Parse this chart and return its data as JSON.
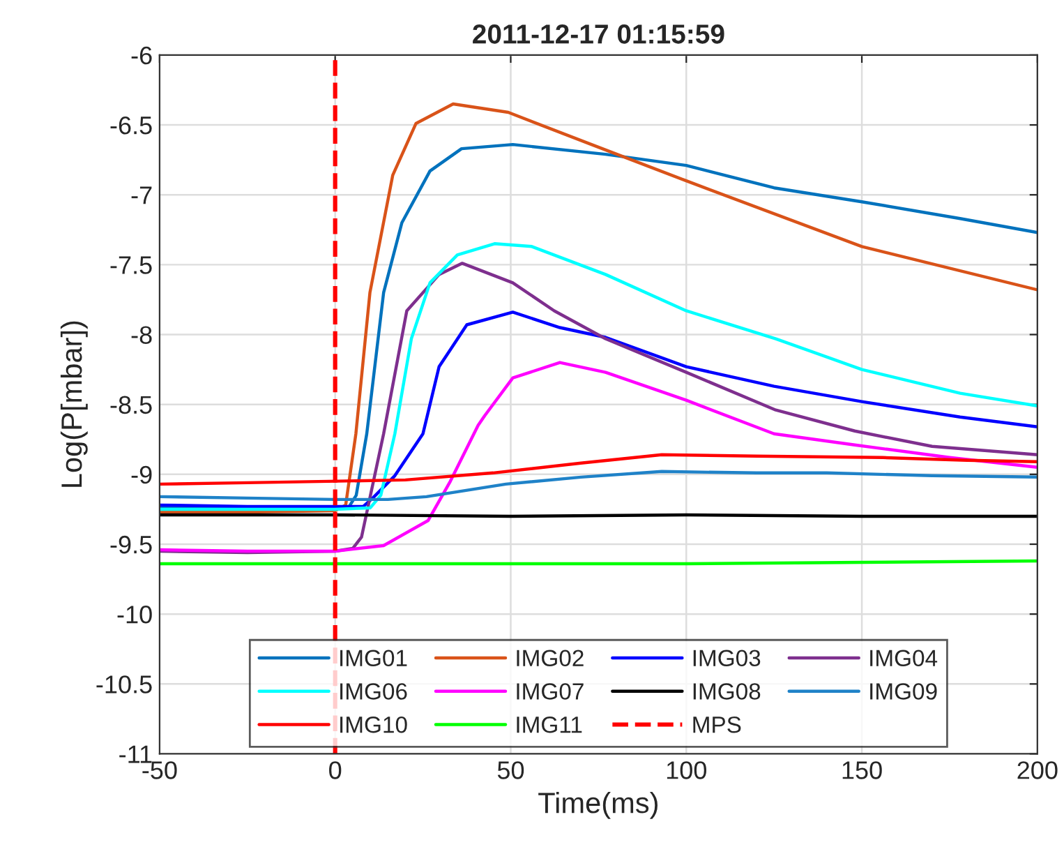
{
  "chart_data": {
    "type": "line",
    "title": "2011-12-17 01:15:59",
    "xlabel": "Time(ms)",
    "ylabel": "Log(P[mbar])",
    "xlim": [
      -50,
      200
    ],
    "xticks": [
      -50,
      0,
      50,
      100,
      150,
      200
    ],
    "ylim": [
      -11,
      -6
    ],
    "yticks": [
      -11,
      -10.5,
      -10,
      -9.5,
      -9,
      -8.5,
      -8,
      -7.5,
      -7,
      -6.5,
      -6
    ],
    "grid": true,
    "legend": "bottom",
    "line_style": "solid",
    "marker": "none",
    "series": [
      {
        "name": "IMG01",
        "color": "#0072bd",
        "x": [
          -50,
          -25,
          0,
          4,
          6,
          9,
          13.8,
          19,
          27,
          36,
          50.6,
          77,
          100,
          125,
          150,
          178,
          200
        ],
        "values": [
          -9.24,
          -9.24,
          -9.24,
          -9.23,
          -9.15,
          -8.71,
          -7.7,
          -7.2,
          -6.83,
          -6.67,
          -6.64,
          -6.71,
          -6.79,
          -6.95,
          -7.05,
          -7.17,
          -7.27
        ]
      },
      {
        "name": "IMG02",
        "color": "#d95319",
        "x": [
          -50,
          -25,
          0,
          3,
          5.9,
          9.9,
          16.4,
          23,
          33.6,
          49.3,
          73,
          100,
          150,
          200
        ],
        "values": [
          -9.27,
          -9.27,
          -9.26,
          -9.22,
          -8.71,
          -7.7,
          -6.86,
          -6.49,
          -6.35,
          -6.41,
          -6.64,
          -6.9,
          -7.37,
          -7.68
        ]
      },
      {
        "name": "IMG03",
        "color": "#0000ff",
        "x": [
          -50,
          -25,
          0,
          8,
          10.7,
          17,
          25,
          29.6,
          37.5,
          50.6,
          64,
          77,
          100,
          125,
          150,
          178,
          200
        ],
        "values": [
          -9.22,
          -9.23,
          -9.23,
          -9.23,
          -9.17,
          -9.01,
          -8.71,
          -8.23,
          -7.93,
          -7.84,
          -7.95,
          -8.02,
          -8.23,
          -8.37,
          -8.48,
          -8.59,
          -8.66
        ]
      },
      {
        "name": "IMG04",
        "color": "#7e2f8e",
        "x": [
          -50,
          -25,
          0,
          5,
          7.5,
          13.8,
          20.4,
          29.6,
          36.2,
          50.6,
          62.4,
          77,
          100,
          125.5,
          148,
          170,
          200
        ],
        "values": [
          -9.55,
          -9.56,
          -9.55,
          -9.53,
          -9.45,
          -8.71,
          -7.83,
          -7.57,
          -7.49,
          -7.63,
          -7.83,
          -8.03,
          -8.27,
          -8.54,
          -8.69,
          -8.8,
          -8.86
        ]
      },
      {
        "name": "IMG06",
        "color": "#00ffff",
        "x": [
          -50,
          -25,
          0,
          10,
          13,
          17,
          21.7,
          27,
          34.8,
          45.4,
          56,
          77,
          100,
          125.5,
          150,
          178,
          200
        ],
        "values": [
          -9.25,
          -9.25,
          -9.25,
          -9.24,
          -9.15,
          -8.71,
          -8.03,
          -7.63,
          -7.43,
          -7.35,
          -7.37,
          -7.57,
          -7.83,
          -8.03,
          -8.25,
          -8.42,
          -8.51
        ]
      },
      {
        "name": "IMG07",
        "color": "#ff00ff",
        "x": [
          -50,
          -25,
          0,
          13.8,
          26.5,
          32.8,
          40.7,
          42.6,
          50.6,
          64,
          77,
          100,
          125,
          148,
          175,
          200
        ],
        "values": [
          -9.54,
          -9.55,
          -9.55,
          -9.51,
          -9.33,
          -9.05,
          -8.65,
          -8.58,
          -8.31,
          -8.2,
          -8.27,
          -8.47,
          -8.71,
          -8.79,
          -8.88,
          -8.95
        ]
      },
      {
        "name": "IMG08",
        "color": "#000000",
        "x": [
          -50,
          0,
          50,
          100,
          150,
          200
        ],
        "values": [
          -9.29,
          -9.29,
          -9.3,
          -9.29,
          -9.3,
          -9.3
        ]
      },
      {
        "name": "IMG09",
        "color": "#1f82c8",
        "x": [
          -50,
          -25,
          0,
          15,
          26,
          48.6,
          70,
          93,
          120,
          140,
          170,
          200
        ],
        "values": [
          -9.16,
          -9.17,
          -9.18,
          -9.18,
          -9.16,
          -9.07,
          -9.02,
          -8.98,
          -8.99,
          -8.99,
          -9.01,
          -9.02
        ]
      },
      {
        "name": "IMG10",
        "color": "#ff0000",
        "x": [
          -50,
          -25,
          -2,
          20,
          45,
          70,
          93,
          120,
          156,
          180,
          200
        ],
        "values": [
          -9.07,
          -9.06,
          -9.05,
          -9.04,
          -8.99,
          -8.92,
          -8.86,
          -8.87,
          -8.88,
          -8.9,
          -8.91
        ]
      },
      {
        "name": "IMG11",
        "color": "#00ff00",
        "x": [
          -50,
          0,
          50,
          100,
          150,
          200
        ],
        "values": [
          -9.64,
          -9.64,
          -9.64,
          -9.64,
          -9.63,
          -9.62
        ]
      },
      {
        "name": "MPS",
        "color": "#ff0000",
        "line_style": "dashed",
        "x": [
          0,
          0
        ],
        "values": [
          -11,
          -6
        ]
      }
    ]
  }
}
